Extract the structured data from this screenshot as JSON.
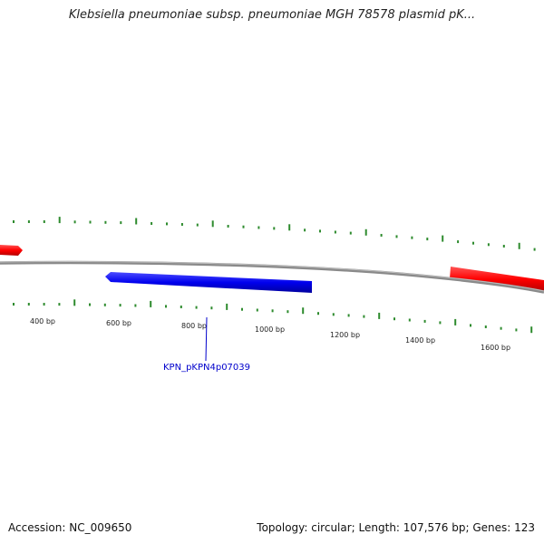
{
  "title": "Klebsiella pneumoniae subsp. pneumoniae MGH 78578 plasmid pK...",
  "footer": {
    "accession": "Accession: NC_009650",
    "summary": "Topology: circular; Length: 107,576 bp; Genes: 123"
  },
  "colors": {
    "forward_gene": "#ff0000",
    "reverse_gene": "#0000ee",
    "backbone": "#888888",
    "ticks": "#2e8b2e",
    "gene_label": "#0000cc"
  },
  "tick_labels": [
    "400 bp",
    "600 bp",
    "800 bp",
    "1000 bp",
    "1200 bp",
    "1400 bp",
    "1600 bp"
  ],
  "genes": [
    {
      "strand": "forward",
      "color_key": "forward_gene",
      "label": ""
    },
    {
      "strand": "reverse",
      "color_key": "reverse_gene",
      "label": "KPN_pKPN4p07039"
    },
    {
      "strand": "forward",
      "color_key": "forward_gene",
      "label": ""
    }
  ]
}
